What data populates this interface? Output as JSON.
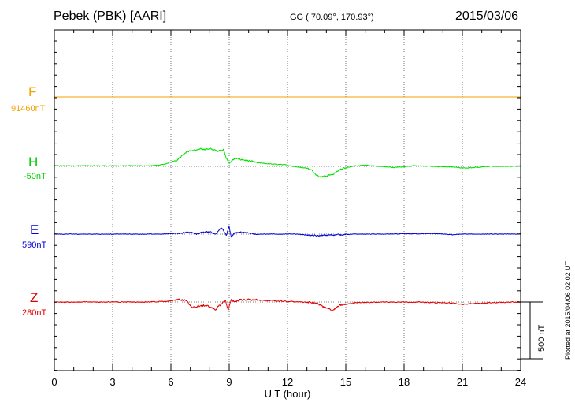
{
  "header": {
    "station": "Pebek (PBK)  [AARI]",
    "coords": "GG ( 70.09°, 170.93°)",
    "date": "2015/03/06"
  },
  "footer": {
    "plotted": "Plotted at 2015/04/06 02:02 UT"
  },
  "scale": {
    "value": 500,
    "unit": "nT",
    "label": "500 nT"
  },
  "chart_data": {
    "type": "line",
    "xlabel": "U T (hour)",
    "ylabel": "",
    "xlim": [
      0,
      24
    ],
    "xticks": [
      0,
      3,
      6,
      9,
      12,
      15,
      18,
      21,
      24
    ],
    "xtick_labels": [
      "0",
      "3",
      "6",
      "9",
      "12",
      "15",
      "18",
      "21",
      "24"
    ],
    "grid": true,
    "units": "nT",
    "channels": [
      {
        "name": "F",
        "baseline_label": "91460nT",
        "baseline": 91460,
        "color": "#f5a200",
        "x": [
          0,
          24
        ],
        "y": [
          0,
          0
        ],
        "noise": 0
      },
      {
        "name": "H",
        "baseline_label": "-50nT",
        "baseline": -50,
        "color": "#00e000",
        "x": [
          0,
          5,
          5.6,
          6.3,
          6.8,
          7.5,
          8.0,
          8.4,
          8.7,
          8.85,
          9.0,
          9.3,
          9.8,
          10.5,
          11.2,
          11.8,
          12.5,
          13.0,
          13.3,
          13.6,
          14.0,
          14.4,
          14.8,
          15.3,
          16.0,
          17.5,
          18.5,
          20.5,
          21.0,
          22.5,
          24
        ],
        "y": [
          5,
          5,
          15,
          55,
          130,
          150,
          155,
          135,
          150,
          70,
          30,
          70,
          55,
          30,
          20,
          15,
          -5,
          -15,
          -40,
          -90,
          -85,
          -65,
          -20,
          0,
          10,
          -10,
          5,
          -5,
          -15,
          0,
          0
        ],
        "noise": 5
      },
      {
        "name": "E",
        "baseline_label": "590nT",
        "baseline": 590,
        "color": "#0000d8",
        "x": [
          0,
          3,
          5.5,
          6.5,
          7.0,
          7.3,
          7.6,
          8.0,
          8.3,
          8.6,
          8.85,
          9.0,
          9.1,
          9.3,
          9.6,
          10.0,
          10.5,
          12.5,
          13.5,
          14.0,
          14.5,
          15.5,
          17.0,
          19.5,
          20.5,
          21.0,
          22.0,
          24
        ],
        "y": [
          0,
          0,
          0,
          10,
          15,
          0,
          15,
          20,
          0,
          60,
          -10,
          70,
          -25,
          15,
          15,
          10,
          0,
          0,
          -15,
          -10,
          -5,
          0,
          0,
          5,
          -5,
          0,
          0,
          0
        ],
        "noise": 4
      },
      {
        "name": "Z",
        "baseline_label": "280nT",
        "baseline": 280,
        "color": "#e00000",
        "x": [
          0,
          4.5,
          5.8,
          6.4,
          6.8,
          7.1,
          7.4,
          7.8,
          8.3,
          8.8,
          8.95,
          9.1,
          9.3,
          9.6,
          10.0,
          10.6,
          12.0,
          12.8,
          13.5,
          14.0,
          14.3,
          14.7,
          15.5,
          17.0,
          18.5,
          20.5,
          21.0,
          22.5,
          24
        ],
        "y": [
          0,
          0,
          5,
          25,
          15,
          -55,
          -35,
          -30,
          -65,
          15,
          -70,
          15,
          5,
          20,
          20,
          15,
          5,
          0,
          -10,
          -55,
          -75,
          -30,
          -5,
          0,
          0,
          -10,
          -20,
          -5,
          0
        ],
        "noise": 6
      }
    ]
  }
}
